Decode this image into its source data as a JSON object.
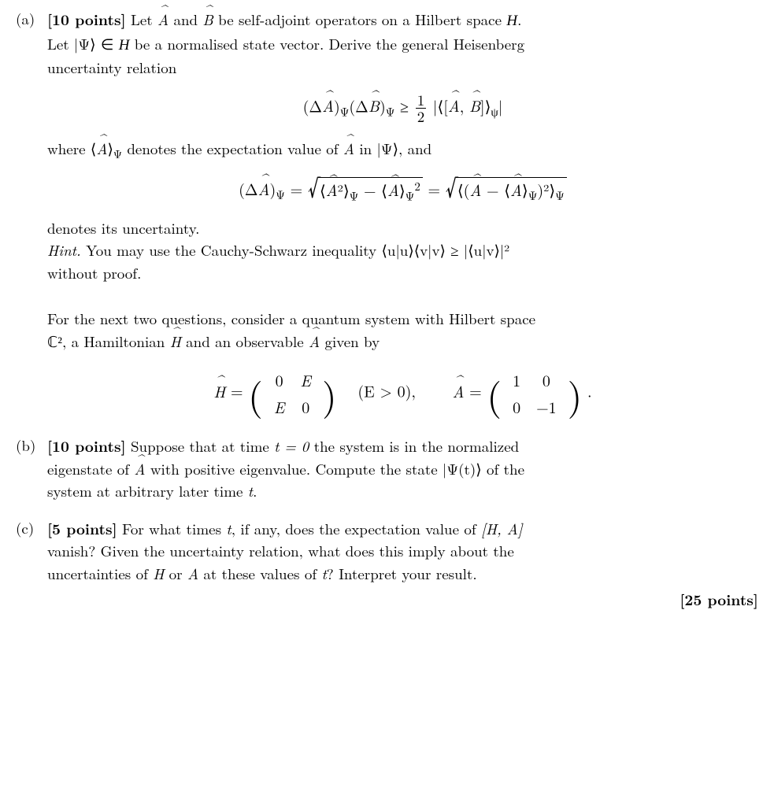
{
  "partA": {
    "label": "(a)",
    "pointsLabel": "[10 points]",
    "text1": "Let ",
    "A": "A",
    "and": " and ",
    "B": "B",
    "text2": " be self-adjoint operators on a Hilbert space ",
    "H": "H",
    "text3": ".",
    "line2a": "Let ",
    "psi": "|Ψ⟩",
    "in": " ∈ ",
    "line2b": " be a normalised state vector. Derive the general Heisenberg",
    "line3": "uncertainty relation",
    "eq1": {
      "lhs1": "(Δ",
      "lhs2": ")",
      "sub": "Ψ",
      "lhs3": "(Δ",
      "lhs4": ")",
      "geq": " ≥ ",
      "frac_num": "1",
      "frac_den": "2",
      "bar1": "|⟨[",
      "bar2": ", ",
      "bar3": "]⟩",
      "sub2": "ψ",
      "bar4": "|"
    },
    "where1": "where ⟨",
    "where2": "⟩",
    "wheresub": "Ψ",
    "where3": " denotes the expectation value of ",
    "where4": " in ",
    "where5": ", and",
    "eq2": {
      "l1": "(Δ",
      "l2": ")",
      "sub": "Ψ",
      "eq": " = ",
      "sq1a": "⟨",
      "sq1b": "²⟩",
      "sq1c": " − ⟨",
      "sq1d": "⟩",
      "sq2a": "⟨(",
      "sq2b": " − ⟨",
      "sq2c": "⟩",
      "sq2d": ")²⟩"
    },
    "denotes": "denotes its uncertainty.",
    "hintLabel": "Hint.",
    "hint1": " You may use the Cauchy-Schwarz inequality ",
    "hintEq": "⟨u|u⟩⟨v|v⟩ ≥ |⟨u|v⟩|²",
    "hint2": "without proof."
  },
  "intro": {
    "text1": "For the next two questions, consider a quantum system with Hilbert space",
    "C2": "ℂ²",
    "text2": ", a Hamiltonian ",
    "H": "H",
    "text3": " and an observable ",
    "A": "A",
    "text4": " given by",
    "Heq": " = ",
    "Hm": {
      "r1c1": "0",
      "r1c2": "E",
      "r2c1": "E",
      "r2c2": "0"
    },
    "Econd": "(E > 0),",
    "Aeq": " = ",
    "Am": {
      "r1c1": "1",
      "r1c2": "0",
      "r2c1": "0",
      "r2c2": "−1"
    },
    "period": "."
  },
  "partB": {
    "label": "(b)",
    "pointsLabel": "[10 points]",
    "text1": " Suppose that at time ",
    "t0": "t = 0",
    "text2": " the system is in the normalized",
    "text3": "eigenstate of ",
    "A": "A",
    "text4": " with positive eigenvalue. Compute the state ",
    "psi": "|Ψ(t)⟩",
    "text5": " of the",
    "text6": "system at arbitrary later time ",
    "t": "t",
    "text7": "."
  },
  "partC": {
    "label": "(c)",
    "pointsLabel": "[5 points]",
    "text1": " For what times ",
    "t": "t",
    "text2": ", if any, does the expectation value of ",
    "comm": "[H, A]",
    "text3": "vanish? Given the uncertainty relation, what does this imply about the",
    "text4": "uncertainties of ",
    "H": "H",
    "or": " or ",
    "A": "A",
    "text5": " at these values of ",
    "t2": "t",
    "text6": "? Interpret your result."
  },
  "totalPoints": "[25 points]"
}
